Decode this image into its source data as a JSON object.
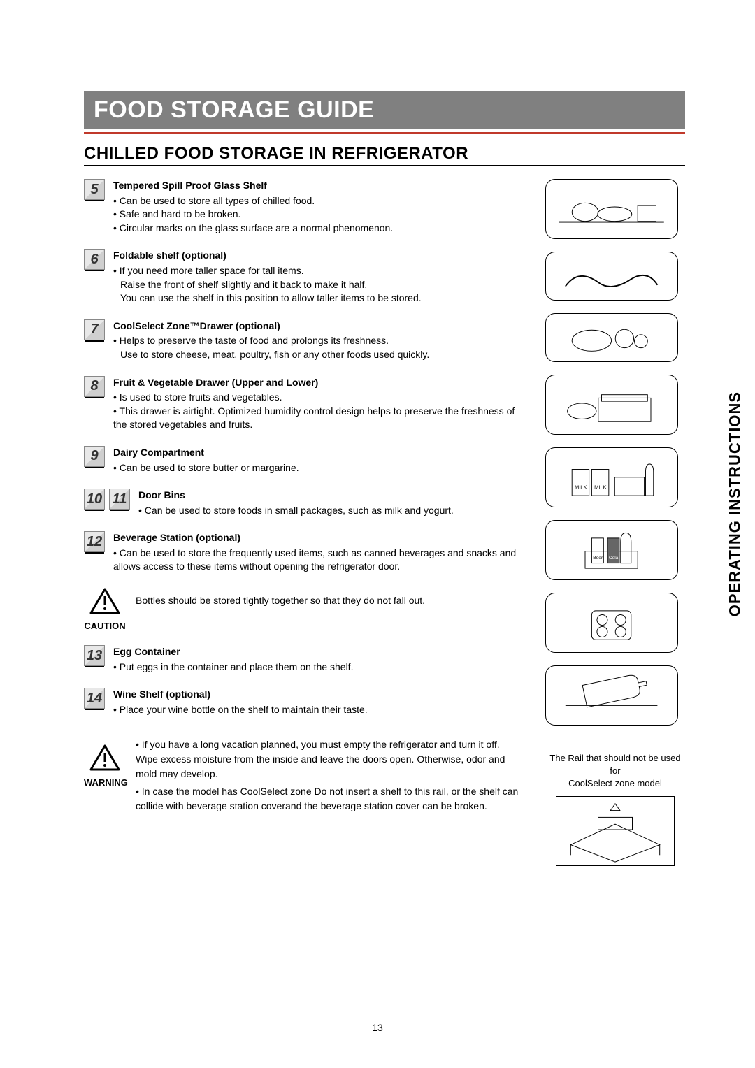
{
  "title": "FOOD STORAGE GUIDE",
  "section": "CHILLED FOOD STORAGE IN REFRIGERATOR",
  "side_label": "OPERATING INSTRUCTIONS",
  "page_number": "13",
  "items": [
    {
      "nums": [
        "5"
      ],
      "title": "Tempered Spill Proof Glass Shelf",
      "bullets": [
        "Can be used to store all types of chilled food.",
        "Safe and hard to be broken.",
        "Circular marks on the glass surface are a normal phenomenon."
      ]
    },
    {
      "nums": [
        "6"
      ],
      "title": "Foldable shelf (optional)",
      "bullets": [
        "If you need more taller space for tall items."
      ],
      "sub_lines": [
        "Raise the front of shelf slightly and it back to make it half.",
        "You can use the shelf in this position to allow taller items to be stored."
      ]
    },
    {
      "nums": [
        "7"
      ],
      "title": "CoolSelect Zone™Drawer (optional)",
      "bullets": [
        "Helps to preserve the taste of food and prolongs its freshness."
      ],
      "sub_lines": [
        "Use to store cheese, meat, poultry, fish or any other foods used quickly."
      ]
    },
    {
      "nums": [
        "8"
      ],
      "title": "Fruit & Vegetable Drawer (Upper and Lower)",
      "bullets": [
        "Is used to store fruits and vegetables.",
        "This drawer is airtight. Optimized humidity control design helps to preserve the freshness of the stored vegetables and fruits."
      ]
    },
    {
      "nums": [
        "9"
      ],
      "title": "Dairy Compartment",
      "bullets": [
        "Can be used to store butter or margarine."
      ]
    },
    {
      "nums": [
        "10",
        "11"
      ],
      "title": "Door Bins",
      "bullets": [
        "Can be used to store foods in small packages, such as milk and yogurt."
      ]
    },
    {
      "nums": [
        "12"
      ],
      "title": "Beverage Station (optional)",
      "bullets": [
        "Can be used to store the frequently used items, such as canned beverages and snacks and allows access to these items without opening the refrigerator door."
      ]
    }
  ],
  "caution": {
    "label": "CAUTION",
    "text": "Bottles should be stored tightly together so that they do not fall out."
  },
  "items2": [
    {
      "nums": [
        "13"
      ],
      "title": "Egg Container",
      "bullets": [
        "Put eggs in the container and place them on the shelf."
      ]
    },
    {
      "nums": [
        "14"
      ],
      "title": "Wine Shelf (optional)",
      "bullets": [
        "Place your wine bottle on the shelf to maintain their taste."
      ]
    }
  ],
  "warning": {
    "label": "WARNING",
    "bullets": [
      "If you have a long vacation planned, you must empty the refrigerator and turn it off. Wipe excess moisture from the inside and leave the doors open. Otherwise, odor and mold may develop.",
      "In case the model has CoolSelect zone  Do not insert a shelf to this rail, or the shelf can collide with beverage station coverand the beverage station cover can be broken."
    ]
  },
  "rail_note_line1": "The Rail that should not be used  for",
  "rail_note_line2": "CoolSelect zone model",
  "colors": {
    "title_bg": "#808080",
    "title_text": "#ffffff",
    "rule": "#c0392b",
    "text": "#000000",
    "badge_border": "#888888"
  }
}
